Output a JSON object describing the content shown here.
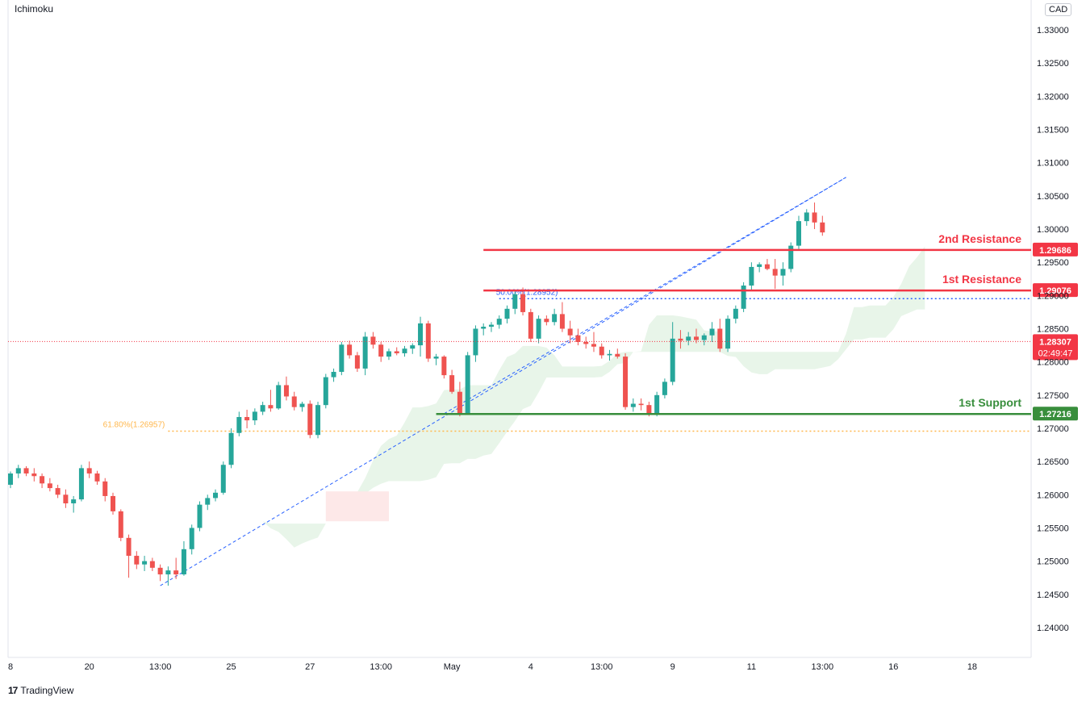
{
  "indicator_label": "Ichimoku",
  "currency_label": "CAD",
  "brand": "TradingView",
  "chart_data": {
    "type": "candlestick",
    "ylim": [
      1.2355,
      1.3345
    ],
    "y_ticks": [
      "1.33000",
      "1.32500",
      "1.32000",
      "1.31500",
      "1.31000",
      "1.30500",
      "1.30000",
      "1.29500",
      "1.29000",
      "1.28500",
      "1.28000",
      "1.27500",
      "1.27000",
      "1.26500",
      "1.26000",
      "1.25500",
      "1.25000",
      "1.24500",
      "1.24000"
    ],
    "x_ticks": [
      {
        "label": "8",
        "i": 0
      },
      {
        "label": "20",
        "i": 10
      },
      {
        "label": "13:00",
        "i": 19
      },
      {
        "label": "25",
        "i": 28
      },
      {
        "label": "27",
        "i": 38
      },
      {
        "label": "13:00",
        "i": 47
      },
      {
        "label": "May",
        "i": 56
      },
      {
        "label": "4",
        "i": 66
      },
      {
        "label": "13:00",
        "i": 75
      },
      {
        "label": "9",
        "i": 84
      },
      {
        "label": "11",
        "i": 94
      },
      {
        "label": "13:00",
        "i": 103
      },
      {
        "label": "16",
        "i": 112
      },
      {
        "label": "18",
        "i": 122
      }
    ],
    "candles": [
      [
        1.2615,
        1.2635,
        1.261,
        1.2632
      ],
      [
        1.2632,
        1.2645,
        1.2625,
        1.264
      ],
      [
        1.264,
        1.2643,
        1.2628,
        1.2632
      ],
      [
        1.2632,
        1.264,
        1.262,
        1.2628
      ],
      [
        1.2628,
        1.2632,
        1.261,
        1.2617
      ],
      [
        1.2617,
        1.2625,
        1.2605,
        1.261
      ],
      [
        1.261,
        1.2615,
        1.2595,
        1.26
      ],
      [
        1.26,
        1.2608,
        1.258,
        1.2587
      ],
      [
        1.2587,
        1.2598,
        1.2573,
        1.2593
      ],
      [
        1.2593,
        1.2645,
        1.259,
        1.264
      ],
      [
        1.264,
        1.265,
        1.2625,
        1.2632
      ],
      [
        1.2632,
        1.2636,
        1.2615,
        1.262
      ],
      [
        1.262,
        1.2625,
        1.259,
        1.2598
      ],
      [
        1.2598,
        1.2603,
        1.257,
        1.2575
      ],
      [
        1.2575,
        1.2578,
        1.253,
        1.2535
      ],
      [
        1.2535,
        1.254,
        1.2475,
        1.2508
      ],
      [
        1.2508,
        1.2515,
        1.2488,
        1.2495
      ],
      [
        1.2495,
        1.2508,
        1.2485,
        1.25
      ],
      [
        1.25,
        1.2505,
        1.2485,
        1.249
      ],
      [
        1.249,
        1.2495,
        1.247,
        1.248
      ],
      [
        1.248,
        1.2492,
        1.2463,
        1.2486
      ],
      [
        1.2486,
        1.2505,
        1.2473,
        1.248
      ],
      [
        1.248,
        1.253,
        1.2478,
        1.2518
      ],
      [
        1.2518,
        1.2555,
        1.251,
        1.255
      ],
      [
        1.255,
        1.259,
        1.2545,
        1.2585
      ],
      [
        1.2585,
        1.26,
        1.2577,
        1.2595
      ],
      [
        1.2595,
        1.2608,
        1.259,
        1.2603
      ],
      [
        1.2603,
        1.265,
        1.26,
        1.2645
      ],
      [
        1.2645,
        1.27,
        1.264,
        1.2693
      ],
      [
        1.2693,
        1.2725,
        1.2688,
        1.2717
      ],
      [
        1.2717,
        1.2728,
        1.27,
        1.2712
      ],
      [
        1.2712,
        1.273,
        1.2705,
        1.2725
      ],
      [
        1.2725,
        1.274,
        1.272,
        1.2735
      ],
      [
        1.2735,
        1.2758,
        1.2725,
        1.273
      ],
      [
        1.273,
        1.277,
        1.2728,
        1.2765
      ],
      [
        1.2765,
        1.2778,
        1.2742,
        1.2748
      ],
      [
        1.2748,
        1.2755,
        1.2727,
        1.2732
      ],
      [
        1.2732,
        1.274,
        1.2725,
        1.2737
      ],
      [
        1.2737,
        1.2742,
        1.2685,
        1.269
      ],
      [
        1.269,
        1.274,
        1.2685,
        1.2735
      ],
      [
        1.2735,
        1.2782,
        1.273,
        1.2777
      ],
      [
        1.2777,
        1.279,
        1.277,
        1.2785
      ],
      [
        1.2785,
        1.283,
        1.278,
        1.2826
      ],
      [
        1.2826,
        1.2832,
        1.2805,
        1.281
      ],
      [
        1.281,
        1.2815,
        1.2785,
        1.279
      ],
      [
        1.279,
        1.2845,
        1.278,
        1.2838
      ],
      [
        1.2838,
        1.2845,
        1.282,
        1.2826
      ],
      [
        1.2826,
        1.283,
        1.28,
        1.2808
      ],
      [
        1.2808,
        1.282,
        1.2803,
        1.2816
      ],
      [
        1.2816,
        1.2822,
        1.281,
        1.2813
      ],
      [
        1.2813,
        1.2824,
        1.2808,
        1.282
      ],
      [
        1.282,
        1.2828,
        1.2812,
        1.2825
      ],
      [
        1.2825,
        1.2868,
        1.2808,
        1.2858
      ],
      [
        1.2858,
        1.2862,
        1.28,
        1.2805
      ],
      [
        1.2805,
        1.2812,
        1.2795,
        1.2808
      ],
      [
        1.2808,
        1.281,
        1.2775,
        1.278
      ],
      [
        1.278,
        1.2788,
        1.2752,
        1.2755
      ],
      [
        1.2755,
        1.277,
        1.2718,
        1.2722
      ],
      [
        1.2722,
        1.2815,
        1.272,
        1.281
      ],
      [
        1.281,
        1.2855,
        1.28,
        1.285
      ],
      [
        1.285,
        1.2858,
        1.284,
        1.2853
      ],
      [
        1.2853,
        1.286,
        1.2845,
        1.2856
      ],
      [
        1.2856,
        1.287,
        1.285,
        1.2865
      ],
      [
        1.2865,
        1.2885,
        1.2858,
        1.288
      ],
      [
        1.288,
        1.2908,
        1.2872,
        1.2902
      ],
      [
        1.2902,
        1.2912,
        1.287,
        1.2875
      ],
      [
        1.2875,
        1.288,
        1.283,
        1.2835
      ],
      [
        1.2835,
        1.287,
        1.2828,
        1.2865
      ],
      [
        1.2865,
        1.287,
        1.2855,
        1.286
      ],
      [
        1.286,
        1.288,
        1.2855,
        1.2872
      ],
      [
        1.2872,
        1.289,
        1.2845,
        1.285
      ],
      [
        1.285,
        1.2862,
        1.2828,
        1.284
      ],
      [
        1.284,
        1.285,
        1.2825,
        1.283
      ],
      [
        1.283,
        1.2838,
        1.282,
        1.2827
      ],
      [
        1.2827,
        1.2845,
        1.2815,
        1.2823
      ],
      [
        1.2823,
        1.2828,
        1.2805,
        1.281
      ],
      [
        1.281,
        1.2818,
        1.2802,
        1.2812
      ],
      [
        1.2812,
        1.282,
        1.2805,
        1.2808
      ],
      [
        1.2808,
        1.2813,
        1.2728,
        1.2732
      ],
      [
        1.2732,
        1.2745,
        1.2725,
        1.2737
      ],
      [
        1.2737,
        1.2745,
        1.2727,
        1.2735
      ],
      [
        1.2735,
        1.274,
        1.2718,
        1.2722
      ],
      [
        1.2722,
        1.2755,
        1.2718,
        1.275
      ],
      [
        1.275,
        1.2775,
        1.2745,
        1.277
      ],
      [
        1.277,
        1.286,
        1.2765,
        1.2835
      ],
      [
        1.2835,
        1.2848,
        1.282,
        1.2832
      ],
      [
        1.2832,
        1.2845,
        1.2825,
        1.2838
      ],
      [
        1.2838,
        1.285,
        1.2828,
        1.2833
      ],
      [
        1.2833,
        1.2843,
        1.2825,
        1.284
      ],
      [
        1.284,
        1.286,
        1.283,
        1.285
      ],
      [
        1.285,
        1.2865,
        1.2815,
        1.282
      ],
      [
        1.282,
        1.287,
        1.2815,
        1.2865
      ],
      [
        1.2865,
        1.2885,
        1.2858,
        1.288
      ],
      [
        1.288,
        1.292,
        1.2875,
        1.2915
      ],
      [
        1.2915,
        1.295,
        1.2908,
        1.2943
      ],
      [
        1.2943,
        1.295,
        1.2935,
        1.2947
      ],
      [
        1.2947,
        1.2955,
        1.2938,
        1.294
      ],
      [
        1.294,
        1.2955,
        1.291,
        1.293
      ],
      [
        1.293,
        1.295,
        1.2915,
        1.294
      ],
      [
        1.294,
        1.298,
        1.2935,
        1.2975
      ],
      [
        1.2975,
        1.302,
        1.297,
        1.3012
      ],
      [
        1.3012,
        1.303,
        1.3005,
        1.3025
      ],
      [
        1.3025,
        1.304,
        1.3,
        1.301
      ],
      [
        1.301,
        1.302,
        1.299,
        1.2995
      ]
    ],
    "horizontal_levels": [
      {
        "name": "2nd Resistance",
        "value": 1.29686,
        "label": "1.29686",
        "color": "#f23645"
      },
      {
        "name": "1st Resistance",
        "value": 1.29076,
        "label": "1.29076",
        "color": "#f23645"
      },
      {
        "name": "1st Support",
        "value": 1.27216,
        "label": "1.27216",
        "color": "#388e3c"
      }
    ],
    "fib_levels": [
      {
        "label": "50.00%(1.28952)",
        "value": 1.28952,
        "color": "#2962ff"
      },
      {
        "label": "61.80%(1.26957)",
        "value": 1.26957,
        "color": "#ffb74d"
      }
    ],
    "current_price": {
      "value": 1.28307,
      "label": "1.28307",
      "countdown": "02:49:47",
      "color": "#f23645"
    },
    "colors": {
      "up": "#26a69a",
      "down": "#ef5350",
      "cloud_bull": "#e8f5e9",
      "cloud_bear": "#fde8e8",
      "trend": "#2962ff"
    }
  }
}
